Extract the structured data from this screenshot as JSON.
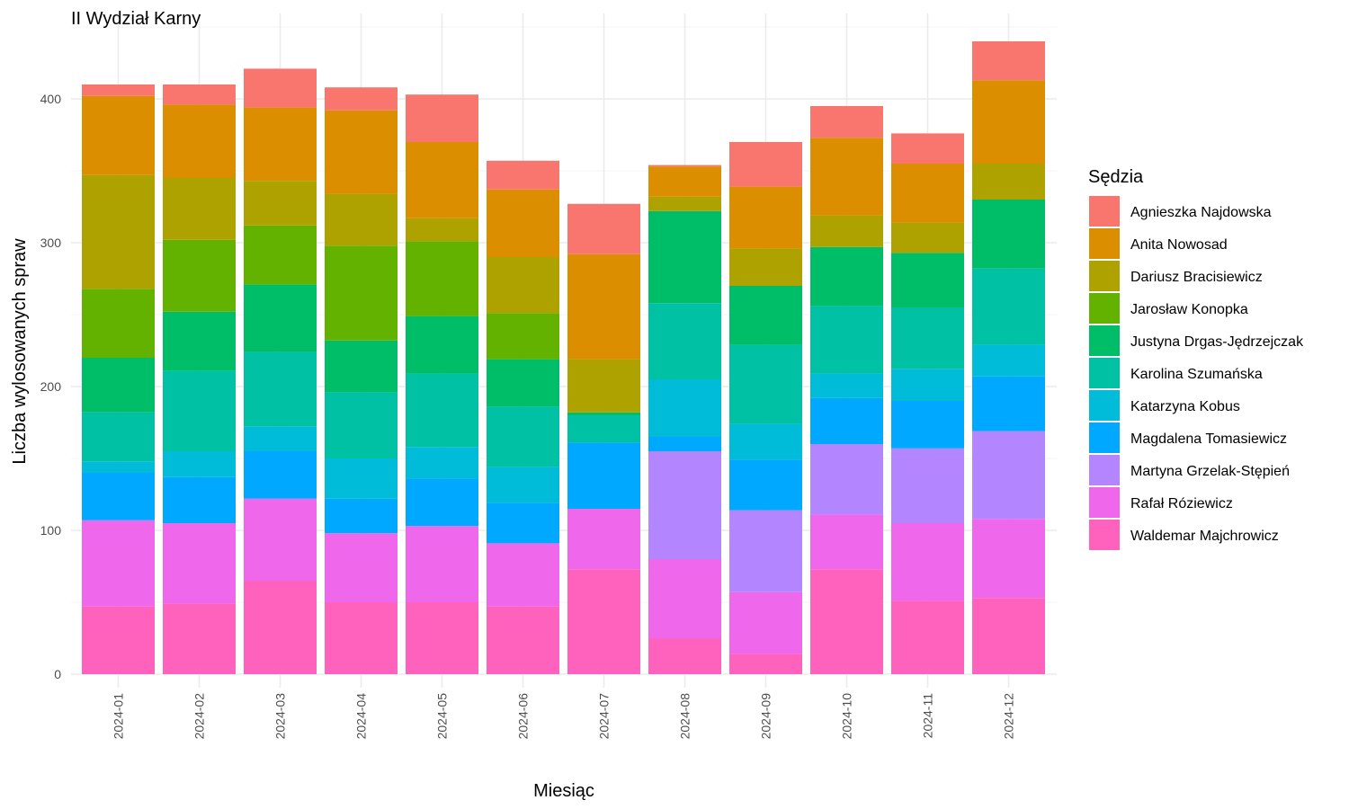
{
  "chart_data": {
    "type": "bar",
    "stacked": true,
    "title": "II Wydział Karny",
    "xlabel": "Miesiąc",
    "ylabel": "Liczba wylosowanych spraw",
    "ylim": [
      0,
      440
    ],
    "yticks": [
      0,
      100,
      200,
      300,
      400
    ],
    "grid": true,
    "legend": {
      "title": "Sędzia",
      "position": "right"
    },
    "categories": [
      "2024-01",
      "2024-02",
      "2024-03",
      "2024-04",
      "2024-05",
      "2024-06",
      "2024-07",
      "2024-08",
      "2024-09",
      "2024-10",
      "2024-11",
      "2024-12"
    ],
    "series": [
      {
        "name": "Waldemar Majchrowicz",
        "color": "#FF62BC",
        "values": [
          47,
          49,
          65,
          50,
          50,
          47,
          73,
          25,
          14,
          73,
          51,
          53
        ]
      },
      {
        "name": "Rafał Róziewicz",
        "color": "#EF67EB",
        "values": [
          60,
          56,
          57,
          48,
          53,
          44,
          42,
          55,
          43,
          38,
          54,
          55
        ]
      },
      {
        "name": "Martyna Grzelak-Stępień",
        "color": "#B385FF",
        "values": [
          0,
          0,
          0,
          0,
          0,
          0,
          0,
          75,
          57,
          49,
          52,
          61
        ]
      },
      {
        "name": "Magdalena Tomasiewicz",
        "color": "#00A9FF",
        "values": [
          33,
          32,
          33,
          24,
          33,
          28,
          46,
          10,
          35,
          32,
          33,
          38
        ]
      },
      {
        "name": "Katarzyna Kobus",
        "color": "#00BCD8",
        "values": [
          8,
          18,
          17,
          28,
          22,
          25,
          0,
          40,
          25,
          17,
          22,
          22
        ]
      },
      {
        "name": "Karolina Szumańska",
        "color": "#00C1A3",
        "values": [
          34,
          56,
          52,
          46,
          51,
          42,
          19,
          53,
          55,
          47,
          43,
          53
        ]
      },
      {
        "name": "Justyna Drgas-Jędrzejczak",
        "color": "#00BE67",
        "values": [
          38,
          41,
          47,
          36,
          40,
          33,
          2,
          64,
          41,
          41,
          38,
          48
        ]
      },
      {
        "name": "Jarosław Konopka",
        "color": "#64B200",
        "values": [
          48,
          50,
          41,
          66,
          52,
          32,
          0,
          0,
          0,
          0,
          0,
          0
        ]
      },
      {
        "name": "Dariusz Bracisiewicz",
        "color": "#AEA200",
        "values": [
          79,
          43,
          31,
          36,
          16,
          39,
          37,
          10,
          26,
          22,
          21,
          25
        ]
      },
      {
        "name": "Anita Nowosad",
        "color": "#DB8E00",
        "values": [
          55,
          51,
          51,
          58,
          53,
          47,
          73,
          21,
          43,
          54,
          41,
          58
        ]
      },
      {
        "name": "Agnieszka Najdowska",
        "color": "#F8766D",
        "values": [
          8,
          14,
          27,
          16,
          33,
          20,
          35,
          1,
          31,
          22,
          21,
          27
        ]
      }
    ],
    "legend_order": [
      "Agnieszka Najdowska",
      "Anita Nowosad",
      "Dariusz Bracisiewicz",
      "Jarosław Konopka",
      "Justyna Drgas-Jędrzejczak",
      "Karolina Szumańska",
      "Katarzyna Kobus",
      "Magdalena Tomasiewicz",
      "Martyna Grzelak-Stępień",
      "Rafał Róziewicz",
      "Waldemar Majchrowicz"
    ]
  }
}
